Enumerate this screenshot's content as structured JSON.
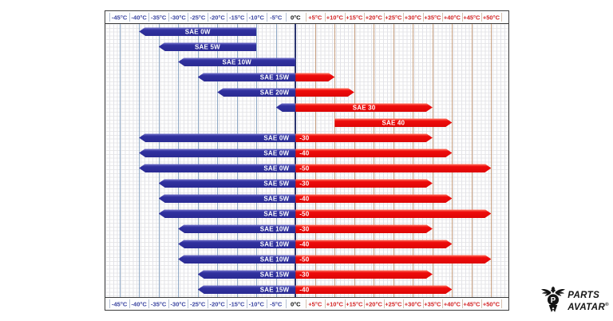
{
  "chart_data": {
    "type": "bar",
    "subtype": "horizontal-temperature-range",
    "x_unit": "°C",
    "axis": {
      "domain": [
        -48.6,
        54.4
      ],
      "tick_step": 5,
      "tick_values": [
        -45,
        -40,
        -35,
        -30,
        -25,
        -20,
        -15,
        -10,
        -5,
        0,
        5,
        10,
        15,
        20,
        25,
        30,
        35,
        40,
        45,
        50
      ],
      "tick_labels": [
        "-45°C",
        "-40°C",
        "-35°C",
        "-30°C",
        "-25°C",
        "-20°C",
        "-15°C",
        "-10°C",
        "-5°C",
        "0°C",
        "+5°C",
        "+10°C",
        "+15°C",
        "+20°C",
        "+25°C",
        "+30°C",
        "+35°C",
        "+40°C",
        "+45°C",
        "+50°C"
      ],
      "shown_on": [
        "top",
        "bottom"
      ]
    },
    "rows": [
      {
        "name": "SAE 0W",
        "cold": {
          "from": -40,
          "to": -10,
          "label": "SAE 0W",
          "align": "center"
        },
        "hot": null
      },
      {
        "name": "SAE 5W",
        "cold": {
          "from": -35,
          "to": -10,
          "label": "SAE 5W",
          "align": "center"
        },
        "hot": null
      },
      {
        "name": "SAE 10W",
        "cold": {
          "from": -30,
          "to": 0,
          "label": "SAE 10W",
          "align": "center"
        },
        "hot": null
      },
      {
        "name": "SAE 15W",
        "cold": {
          "from": -25,
          "to": 0,
          "label": "SAE 15W",
          "align": "right"
        },
        "hot": {
          "from": 0,
          "to": 10,
          "label": "",
          "align": "left"
        }
      },
      {
        "name": "SAE 20W",
        "cold": {
          "from": -20,
          "to": 0,
          "label": "SAE 20W",
          "align": "right"
        },
        "hot": {
          "from": 0,
          "to": 15,
          "label": "",
          "align": "left"
        }
      },
      {
        "name": "SAE 30",
        "cold": {
          "from": -5,
          "to": 0,
          "label": "",
          "align": "center"
        },
        "hot": {
          "from": 0,
          "to": 35,
          "label": "SAE 30",
          "align": "center"
        }
      },
      {
        "name": "SAE 40",
        "cold": null,
        "hot": {
          "from": 10,
          "to": 40,
          "label": "SAE 40",
          "align": "center"
        }
      },
      {
        "name": "SAE 0W-30",
        "cold": {
          "from": -40,
          "to": 0,
          "label": "SAE 0W",
          "align": "right"
        },
        "hot": {
          "from": 0,
          "to": 35,
          "label": "-30",
          "align": "left"
        }
      },
      {
        "name": "SAE 0W-40",
        "cold": {
          "from": -40,
          "to": 0,
          "label": "SAE 0W",
          "align": "right"
        },
        "hot": {
          "from": 0,
          "to": 40,
          "label": "-40",
          "align": "left"
        }
      },
      {
        "name": "SAE 0W-50",
        "cold": {
          "from": -40,
          "to": 0,
          "label": "SAE 0W",
          "align": "right"
        },
        "hot": {
          "from": 0,
          "to": 50,
          "label": "-50",
          "align": "left"
        }
      },
      {
        "name": "SAE 5W-30",
        "cold": {
          "from": -35,
          "to": 0,
          "label": "SAE 5W",
          "align": "right"
        },
        "hot": {
          "from": 0,
          "to": 35,
          "label": "-30",
          "align": "left"
        }
      },
      {
        "name": "SAE 5W-40",
        "cold": {
          "from": -35,
          "to": 0,
          "label": "SAE 5W",
          "align": "right"
        },
        "hot": {
          "from": 0,
          "to": 40,
          "label": "-40",
          "align": "left"
        }
      },
      {
        "name": "SAE 5W-50",
        "cold": {
          "from": -35,
          "to": 0,
          "label": "SAE 5W",
          "align": "right"
        },
        "hot": {
          "from": 0,
          "to": 50,
          "label": "-50",
          "align": "left"
        }
      },
      {
        "name": "SAE 10W-30",
        "cold": {
          "from": -30,
          "to": 0,
          "label": "SAE 10W",
          "align": "right"
        },
        "hot": {
          "from": 0,
          "to": 35,
          "label": "-30",
          "align": "left"
        }
      },
      {
        "name": "SAE 10W-40",
        "cold": {
          "from": -30,
          "to": 0,
          "label": "SAE 10W",
          "align": "right"
        },
        "hot": {
          "from": 0,
          "to": 40,
          "label": "-40",
          "align": "left"
        }
      },
      {
        "name": "SAE 10W-50",
        "cold": {
          "from": -30,
          "to": 0,
          "label": "SAE 10W",
          "align": "right"
        },
        "hot": {
          "from": 0,
          "to": 50,
          "label": "-50",
          "align": "left"
        }
      },
      {
        "name": "SAE 15W-30",
        "cold": {
          "from": -25,
          "to": 0,
          "label": "SAE 15W",
          "align": "right"
        },
        "hot": {
          "from": 0,
          "to": 35,
          "label": "-30",
          "align": "left"
        }
      },
      {
        "name": "SAE 15W-40",
        "cold": {
          "from": -25,
          "to": 0,
          "label": "SAE 15W",
          "align": "right"
        },
        "hot": {
          "from": 0,
          "to": 40,
          "label": "-40",
          "align": "left"
        }
      }
    ],
    "colors": {
      "cold_bar": "#31319f",
      "hot_bar": "#ee0b0b",
      "tick_negative": "#3a44a0",
      "tick_zero": "#0a0a0a",
      "tick_positive": "#d42222",
      "grid_minor": "#e5e5e5",
      "grid_major_negative": "#8fa9c6",
      "grid_major_positive": "#c69e7e",
      "zero_line": "#2b3570",
      "chart_border": "#3e3e3e"
    },
    "legend": "none",
    "grid": "minor 1°C squares with major 5°C colored lines"
  },
  "logo": {
    "line1": "PARTS",
    "line2": "AVATAR",
    "registered": "®"
  }
}
